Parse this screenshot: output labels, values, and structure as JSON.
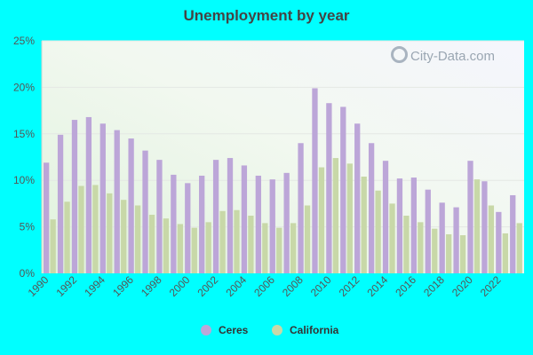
{
  "chart_data": {
    "type": "bar",
    "title": "Unemployment by year",
    "xlabel": "",
    "ylabel": "",
    "ylim": [
      0,
      25
    ],
    "y_ticks": [
      "0%",
      "5%",
      "10%",
      "15%",
      "20%",
      "25%"
    ],
    "y_tick_values": [
      0,
      5,
      10,
      15,
      20,
      25
    ],
    "x_tick_labels": [
      "1990",
      "1992",
      "1994",
      "1996",
      "1998",
      "2000",
      "2002",
      "2004",
      "2006",
      "2008",
      "2010",
      "2012",
      "2014",
      "2016",
      "2018",
      "2020",
      "2022"
    ],
    "categories": [
      "1990",
      "1991",
      "1992",
      "1993",
      "1994",
      "1995",
      "1996",
      "1997",
      "1998",
      "1999",
      "2000",
      "2001",
      "2002",
      "2003",
      "2004",
      "2005",
      "2006",
      "2007",
      "2008",
      "2009",
      "2010",
      "2011",
      "2012",
      "2013",
      "2014",
      "2015",
      "2016",
      "2017",
      "2018",
      "2019",
      "2020",
      "2021",
      "2022",
      "2023"
    ],
    "series": [
      {
        "name": "Ceres",
        "color": "#bca6d8",
        "values": [
          11.9,
          14.9,
          16.5,
          16.8,
          16.1,
          15.4,
          14.5,
          13.2,
          12.2,
          10.6,
          9.7,
          10.5,
          12.2,
          12.4,
          11.6,
          10.5,
          10.1,
          10.8,
          14.0,
          19.9,
          18.3,
          17.9,
          16.1,
          14.0,
          12.1,
          10.2,
          10.3,
          9.0,
          7.6,
          7.1,
          12.1,
          9.9,
          6.6,
          8.4
        ]
      },
      {
        "name": "California",
        "color": "#c8d8a8",
        "values": [
          5.8,
          7.7,
          9.4,
          9.5,
          8.6,
          7.9,
          7.3,
          6.3,
          5.9,
          5.3,
          4.9,
          5.5,
          6.7,
          6.8,
          6.2,
          5.4,
          4.9,
          5.4,
          7.3,
          11.4,
          12.4,
          11.8,
          10.4,
          8.9,
          7.5,
          6.2,
          5.5,
          4.8,
          4.2,
          4.1,
          10.1,
          7.3,
          4.3,
          5.4
        ]
      }
    ],
    "grid": true,
    "legend": "bottom"
  },
  "watermark": "City-Data.com",
  "watermark_icon": "magnifier-icon"
}
